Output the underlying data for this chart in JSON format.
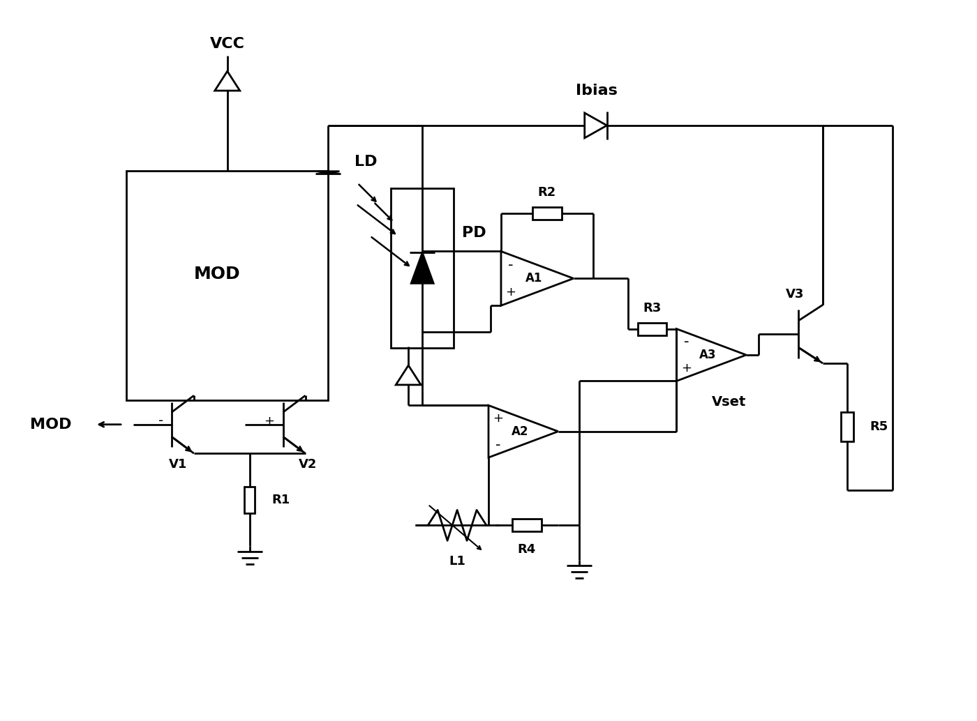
{
  "bg_color": "#ffffff",
  "lc": "#000000",
  "lw": 2.0,
  "fig_w": 14.0,
  "fig_h": 10.34,
  "xlim": [
    0,
    14
  ],
  "ylim": [
    0,
    10.34
  ]
}
